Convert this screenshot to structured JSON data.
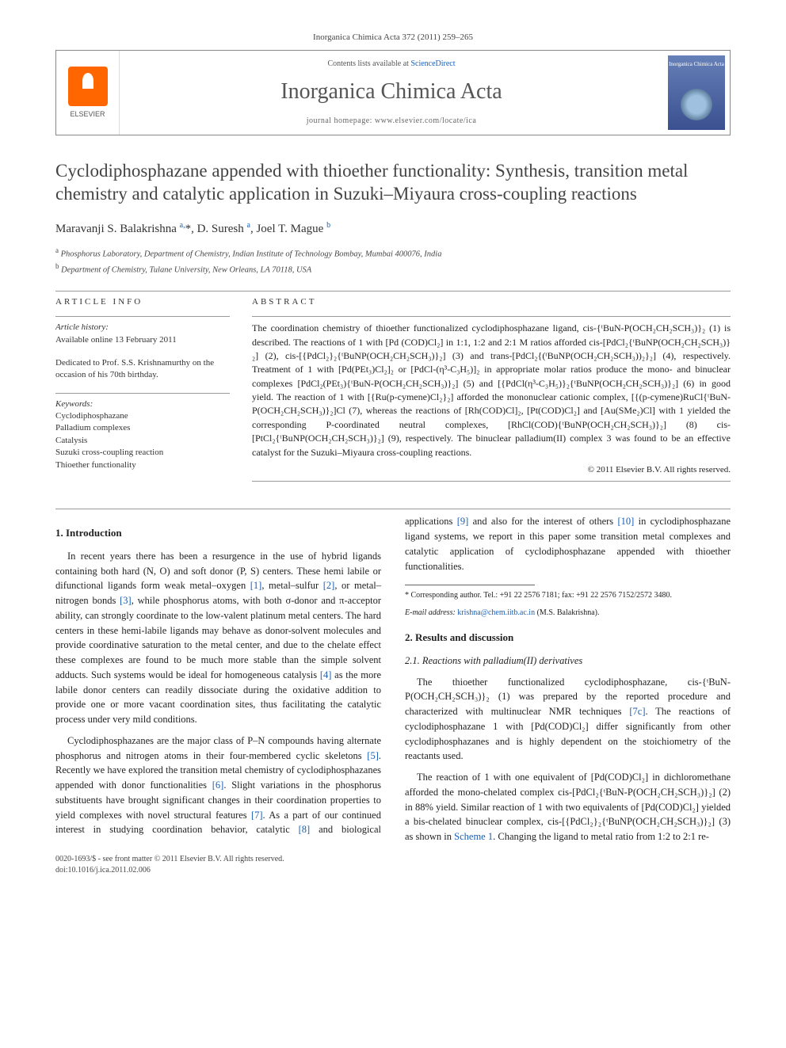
{
  "journal_ref": "Inorganica Chimica Acta 372 (2011) 259–265",
  "header": {
    "elsevier_label": "ELSEVIER",
    "contents_prefix": "Contents lists available at ",
    "contents_link": "ScienceDirect",
    "journal_name": "Inorganica Chimica Acta",
    "homepage_label": "journal homepage: ",
    "homepage_url": "www.elsevier.com/locate/ica",
    "cover_title": "Inorganica Chimica Acta"
  },
  "title": "Cyclodiphosphazane appended with thioether functionality: Synthesis, transition metal chemistry and catalytic application in Suzuki–Miyaura cross-coupling reactions",
  "authors_html": "Maravanji S. Balakrishna <sup>a,</sup>*, D. Suresh <sup>a</sup>, Joel T. Mague <sup>b</sup>",
  "affiliations": {
    "a": "Phosphorus Laboratory, Department of Chemistry, Indian Institute of Technology Bombay, Mumbai 400076, India",
    "b": "Department of Chemistry, Tulane University, New Orleans, LA 70118, USA"
  },
  "article_info": {
    "label": "ARTICLE INFO",
    "history_header": "Article history:",
    "history_line": "Available online 13 February 2011",
    "dedication": "Dedicated to Prof. S.S. Krishnamurthy on the occasion of his 70th birthday.",
    "keywords_header": "Keywords:",
    "keywords": [
      "Cyclodiphosphazane",
      "Palladium complexes",
      "Catalysis",
      "Suzuki cross-coupling reaction",
      "Thioether functionality"
    ]
  },
  "abstract": {
    "label": "ABSTRACT",
    "text": "The coordination chemistry of thioether functionalized cyclodiphosphazane ligand, cis-{ᵗBuN-P(OCH₂CH₂SCH₃)}₂ (1) is described. The reactions of 1 with [Pd (COD)Cl₂] in 1:1, 1:2 and 2:1 M ratios afforded cis-[PdCl₂{ᵗBuNP(OCH₂CH₂SCH₃)}₂] (2), cis-[{PdCl₂}₂{ᵗBuNP(OCH₂CH₂SCH₃)}₂] (3) and trans-[PdCl₂{(ᵗBuNP(OCH₂CH₂SCH₃))₂}₂] (4), respectively. Treatment of 1 with [Pd(PEt₃)Cl₂]₂ or [PdCl-(η³-C₃H₅)]₂ in appropriate molar ratios produce the mono- and binuclear complexes [PdCl₂(PEt₃){ᵗBuN-P(OCH₂CH₂SCH₃)}₂] (5) and [{PdCl(η³-C₃H₅)}₂{ᵗBuNP(OCH₂CH₂SCH₃)}₂] (6) in good yield. The reaction of 1 with [{Ru(p-cymene)Cl₂}₂] afforded the mononuclear cationic complex, [{(p-cymene)RuCl{ᵗBuN-P(OCH₂CH₂SCH₃)}₂]Cl (7), whereas the reactions of [Rh(COD)Cl]₂, [Pt(COD)Cl₂] and [Au(SMe₂)Cl] with 1 yielded the corresponding P-coordinated neutral complexes, [RhCl(COD){ᵗBuNP(OCH₂CH₂SCH₃)}₂] (8) cis-[PtCl₂{ᵗBuNP(OCH₂CH₂SCH₃)}₂] (9), respectively. The binuclear palladium(II) complex 3 was found to be an effective catalyst for the Suzuki–Miyaura cross-coupling reactions.",
    "copyright": "© 2011 Elsevier B.V. All rights reserved."
  },
  "body": {
    "sec1_title": "1. Introduction",
    "sec1_p1": "In recent years there has been a resurgence in the use of hybrid ligands containing both hard (N, O) and soft donor (P, S) centers. These hemi labile or difunctional ligands form weak metal–oxygen [1], metal–sulfur [2], or metal–nitrogen bonds [3], while phosphorus atoms, with both σ-donor and π-acceptor ability, can strongly coordinate to the low-valent platinum metal centers. The hard centers in these hemi-labile ligands may behave as donor-solvent molecules and provide coordinative saturation to the metal center, and due to the chelate effect these complexes are found to be much more stable than the simple solvent adducts. Such systems would be ideal for homogeneous catalysis [4] as the more labile donor centers can readily dissociate during the oxidative addition to provide one or more vacant coordination sites, thus facilitating the catalytic process under very mild conditions.",
    "sec1_p2": "Cyclodiphosphazanes are the major class of P–N compounds having alternate phosphorus and nitrogen atoms in their four-membered cyclic skeletons [5]. Recently we have explored the transition metal chemistry of cyclodiphosphazanes appended with donor functionalities [6]. Slight variations in the phosphorus substituents have brought significant changes in their coordination properties to yield complexes with novel structural features [7]. As a part of our continued interest in studying coordination behavior, catalytic [8] and biological applications [9] and also for the interest of others [10] in cyclodiphosphazane ligand systems, we report in this paper some transition metal complexes and catalytic application of cyclodiphosphazane appended with thioether functionalities.",
    "sec2_title": "2. Results and discussion",
    "sec2_1_title": "2.1. Reactions with palladium(II) derivatives",
    "sec2_1_p1": "The thioether functionalized cyclodiphosphazane, cis-{ᵗBuN-P(OCH₂CH₂SCH₃)}₂ (1) was prepared by the reported procedure and characterized with multinuclear NMR techniques [7c]. The reactions of cyclodiphosphazane 1 with [Pd(COD)Cl₂] differ significantly from other cyclodiphosphazanes and is highly dependent on the stoichiometry of the reactants used.",
    "sec2_1_p2": "The reaction of 1 with one equivalent of [Pd(COD)Cl₂] in dichloromethane afforded the mono-chelated complex cis-[PdCl₂{ᵗBuN-P(OCH₂CH₂SCH₃)}₂] (2) in 88% yield. Similar reaction of 1 with two equivalents of [Pd(COD)Cl₂] yielded a bis-chelated binuclear complex, cis-[{PdCl₂}₂{ᵗBuNP(OCH₂CH₂SCH₃)}₂] (3) as shown in Scheme 1. Changing the ligand to metal ratio from 1:2 to 2:1 re-"
  },
  "footnotes": {
    "corr": "* Corresponding author. Tel.: +91 22 2576 7181; fax: +91 22 2576 7152/2572 3480.",
    "email_label": "E-mail address: ",
    "email": "krishna@chem.iitb.ac.in",
    "email_person": " (M.S. Balakrishna)."
  },
  "footer": {
    "left1": "0020-1693/$ - see front matter © 2011 Elsevier B.V. All rights reserved.",
    "left2": "doi:10.1016/j.ica.2011.02.006"
  },
  "colors": {
    "link": "#1a5fb4",
    "elsevier_orange": "#ff6600",
    "cover_blue": "#4a60a0"
  }
}
